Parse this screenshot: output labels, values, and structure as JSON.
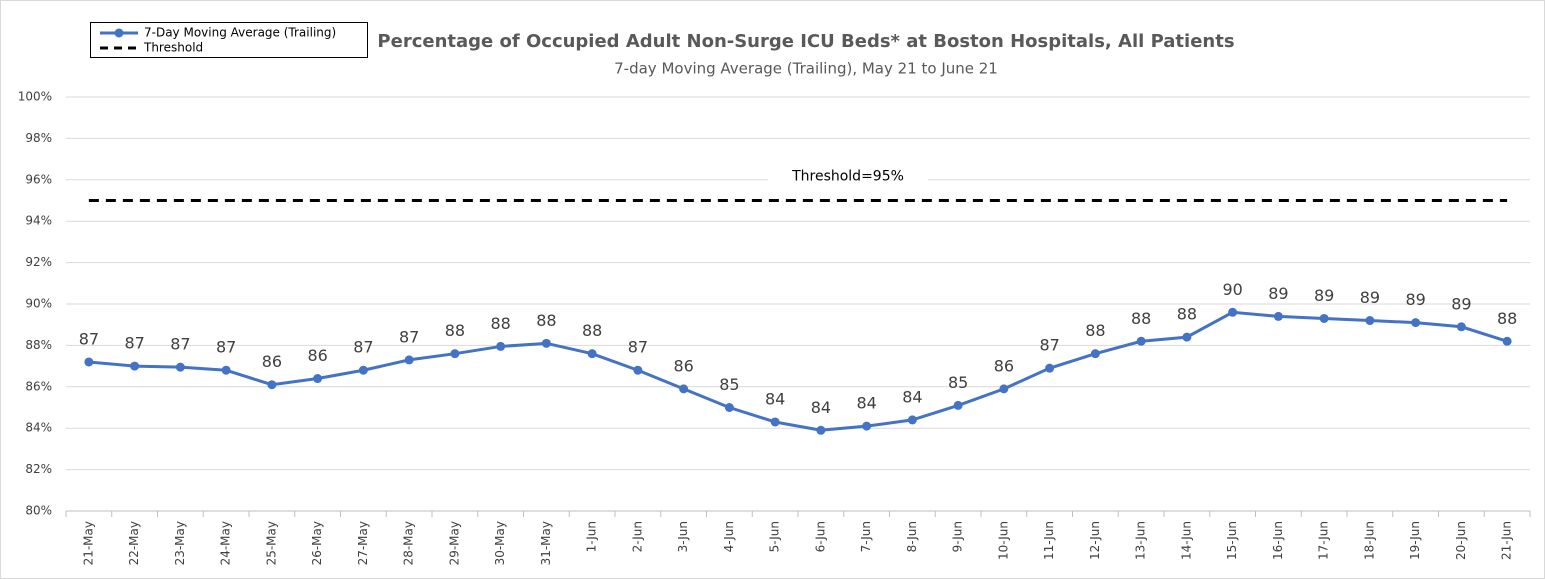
{
  "chart_data": {
    "type": "line",
    "title": "Percentage of Occupied Adult Non-Surge ICU Beds* at Boston Hospitals, All Patients",
    "subtitle": "7-day Moving Average (Trailing), May 21 to June 21",
    "categories": [
      "21-May",
      "22-May",
      "23-May",
      "24-May",
      "25-May",
      "26-May",
      "27-May",
      "28-May",
      "29-May",
      "30-May",
      "31-May",
      "1-Jun",
      "2-Jun",
      "3-Jun",
      "4-Jun",
      "5-Jun",
      "6-Jun",
      "7-Jun",
      "8-Jun",
      "9-Jun",
      "10-Jun",
      "11-Jun",
      "12-Jun",
      "13-Jun",
      "14-Jun",
      "15-Jun",
      "16-Jun",
      "17-Jun",
      "18-Jun",
      "19-Jun",
      "20-Jun",
      "21-Jun"
    ],
    "series": [
      {
        "name": "7-Day Moving Average (Trailing)",
        "color": "#4472c4",
        "values": [
          87.2,
          87.0,
          86.95,
          86.8,
          86.1,
          86.4,
          86.8,
          87.3,
          87.6,
          87.95,
          88.1,
          87.6,
          86.8,
          85.9,
          85.0,
          84.3,
          83.9,
          84.1,
          84.4,
          85.1,
          85.9,
          86.9,
          87.6,
          88.2,
          88.4,
          89.6,
          89.4,
          89.3,
          89.2,
          89.1,
          88.9,
          88.2
        ],
        "value_labels": [
          "87",
          "87",
          "87",
          "87",
          "86",
          "86",
          "87",
          "87",
          "88",
          "88",
          "88",
          "88",
          "87",
          "86",
          "85",
          "84",
          "84",
          "84",
          "84",
          "85",
          "86",
          "87",
          "88",
          "88",
          "88",
          "90",
          "89",
          "89",
          "89",
          "89",
          "89",
          "88"
        ]
      }
    ],
    "threshold": {
      "name": "Threshold",
      "value": 95,
      "label": "Threshold=95%",
      "color": "#000000"
    },
    "ylim": [
      80,
      100
    ],
    "yticks": [
      {
        "value": 80,
        "label": "80%"
      },
      {
        "value": 82,
        "label": "82%"
      },
      {
        "value": 84,
        "label": "84%"
      },
      {
        "value": 86,
        "label": "86%"
      },
      {
        "value": 88,
        "label": "88%"
      },
      {
        "value": 90,
        "label": "90%"
      },
      {
        "value": 92,
        "label": "92%"
      },
      {
        "value": 94,
        "label": "94%"
      },
      {
        "value": 96,
        "label": "96%"
      },
      {
        "value": 98,
        "label": "98%"
      },
      {
        "value": 100,
        "label": "100%"
      }
    ],
    "grid": true
  }
}
